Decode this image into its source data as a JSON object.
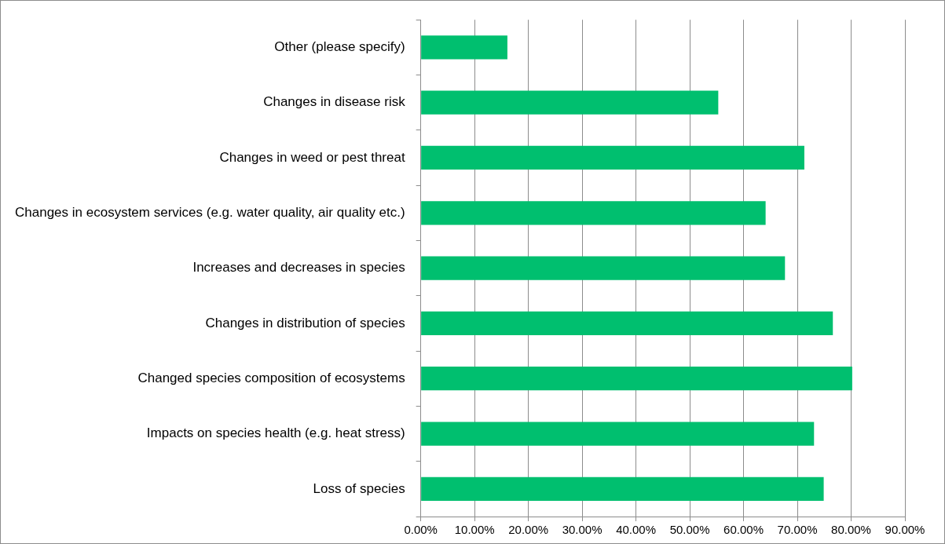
{
  "chart_data": {
    "type": "bar",
    "orientation": "horizontal",
    "categories": [
      "Other (please specify)",
      "Changes in disease risk",
      "Changes in weed or pest threat",
      "Changes in ecosystem services (e.g. water quality, air quality etc.)",
      "Increases and decreases in species",
      "Changes in distribution of species",
      "Changed species composition of ecosystems",
      "Impacts on species health (e.g. heat stress)",
      "Loss of species"
    ],
    "values": [
      16.1,
      55.3,
      71.3,
      64.1,
      67.7,
      76.6,
      80.2,
      73.1,
      74.9
    ],
    "color": "#00bf6f",
    "xlim": [
      0,
      90
    ],
    "xticks": [
      {
        "value": 0,
        "label": "0.00%"
      },
      {
        "value": 10,
        "label": "10.00%"
      },
      {
        "value": 20,
        "label": "20.00%"
      },
      {
        "value": 30,
        "label": "30.00%"
      },
      {
        "value": 40,
        "label": "40.00%"
      },
      {
        "value": 50,
        "label": "50.00%"
      },
      {
        "value": 60,
        "label": "60.00%"
      },
      {
        "value": 70,
        "label": "70.00%"
      },
      {
        "value": 80,
        "label": "80.00%"
      },
      {
        "value": 90,
        "label": "90.00%"
      }
    ],
    "grid": "x",
    "legend": false
  }
}
